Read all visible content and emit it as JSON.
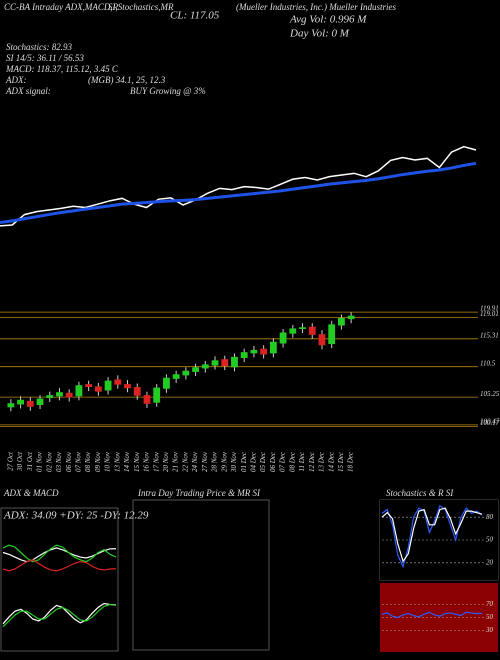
{
  "header": {
    "h1": "CC-BA Intraday ADX,MACD,R",
    "h2": "SI,Stochastics,MR",
    "h3": "CL: 117.05",
    "h4": "(Mueller Industries, Inc.) Mueller Industries",
    "avg_vol": "Avg Vol: 0.996  M",
    "day_vol": "Day Vol: 0  M",
    "stoch": "Stochastics: 82.93",
    "si": "SI 14/5: 36.11 / 56.53",
    "macd": "MACD: 118.37, 115.12, 3.45 C",
    "adx": "ADX:",
    "adx_vals": "(MGB) 34.1, 25, 12.3",
    "adx_signal": "ADX  signal:",
    "signal": "BUY Growing @ 3%"
  },
  "chart_data": [
    {
      "type": "line",
      "ylim": [
        95,
        125
      ],
      "series": [
        {
          "color": "#ffffff",
          "values": [
            100.8,
            101.0,
            103.5,
            104.2,
            104.6,
            105.0,
            105.5,
            105.2,
            106.0,
            106.8,
            107.4,
            106.0,
            105.2,
            107.2,
            107.5,
            105.8,
            107.0,
            108.6,
            109.8,
            109.5,
            110.2,
            110.0,
            109.6,
            110.8,
            112.0,
            112.4,
            111.8,
            112.6,
            113.0,
            113.4,
            112.6,
            114.0,
            116.5,
            117.2,
            116.6,
            117.0,
            114.8,
            118.5,
            119.8,
            119.0
          ]
        },
        {
          "color": "#1f52e6",
          "values": [
            101.6,
            102.0,
            102.5,
            103.0,
            103.5,
            104.0,
            104.4,
            104.8,
            105.2,
            105.6,
            106.0,
            106.2,
            106.4,
            106.6,
            106.8,
            106.9,
            107.1,
            107.4,
            107.7,
            108.0,
            108.3,
            108.6,
            108.9,
            109.2,
            109.6,
            110.0,
            110.4,
            110.8,
            111.1,
            111.4,
            111.7,
            112.1,
            112.6,
            113.1,
            113.5,
            113.9,
            114.2,
            114.7,
            115.3,
            115.8
          ]
        }
      ]
    },
    {
      "type": "candlestick",
      "ylim": [
        97,
        122
      ],
      "yticks": [
        119.91,
        119.01,
        115.31,
        110.5,
        105.25,
        100.47,
        100.17
      ],
      "up_color": "#22cc22",
      "down_color": "#dd2222",
      "categories": [
        "27 Oct",
        "30 Oct",
        "31 Oct",
        "01 Nov",
        "02 Nov",
        "03 Nov",
        "06 Nov",
        "07 Nov",
        "08 Nov",
        "09 Nov",
        "10 Nov",
        "13 Nov",
        "14 Nov",
        "15 Nov",
        "16 Nov",
        "17 Nov",
        "20 Nov",
        "21 Nov",
        "22 Nov",
        "24 Nov",
        "27 Nov",
        "28 Nov",
        "29 Nov",
        "30 Nov",
        "01 Dec",
        "04 Dec",
        "05 Dec",
        "06 Dec",
        "07 Dec",
        "08 Dec",
        "11 Dec",
        "12 Dec",
        "13 Dec",
        "14 Dec",
        "15 Dec",
        "18 Dec"
      ],
      "open": [
        103.5,
        104.0,
        104.6,
        103.9,
        105.1,
        105.4,
        106.0,
        105.4,
        107.5,
        107.1,
        106.4,
        108.3,
        107.5,
        107.0,
        105.6,
        104.3,
        106.7,
        108.4,
        109.0,
        109.6,
        110.2,
        110.7,
        111.8,
        110.4,
        112.0,
        112.8,
        113.6,
        112.8,
        114.5,
        116.2,
        117.0,
        117.4,
        116.1,
        114.4,
        117.6,
        118.7
      ],
      "high": [
        104.9,
        105.4,
        105.2,
        105.6,
        106.2,
        106.8,
        106.6,
        107.9,
        108.1,
        107.7,
        108.7,
        109.0,
        108.2,
        107.6,
        106.2,
        107.5,
        109.2,
        109.8,
        110.4,
        111.0,
        111.5,
        112.3,
        112.4,
        112.8,
        113.6,
        114.1,
        114.2,
        115.4,
        117.0,
        117.7,
        118.0,
        118.0,
        116.8,
        118.4,
        119.5,
        119.9
      ],
      "low": [
        102.8,
        103.3,
        102.9,
        103.2,
        104.4,
        104.7,
        104.5,
        104.7,
        106.3,
        105.5,
        105.7,
        106.7,
        106.1,
        104.8,
        103.4,
        103.6,
        106.0,
        107.7,
        108.3,
        108.9,
        109.5,
        110.0,
        109.9,
        109.7,
        111.3,
        112.1,
        111.9,
        112.1,
        113.8,
        115.5,
        116.3,
        115.3,
        113.5,
        113.7,
        116.9,
        118.0
      ],
      "close": [
        104.2,
        104.8,
        103.6,
        105.0,
        105.6,
        106.1,
        105.2,
        107.3,
        107.0,
        106.2,
        108.1,
        107.4,
        106.8,
        105.5,
        104.1,
        106.9,
        108.6,
        109.2,
        109.8,
        110.4,
        110.9,
        111.6,
        110.6,
        112.2,
        113.0,
        113.4,
        112.6,
        114.8,
        116.4,
        117.1,
        117.3,
        116.0,
        114.2,
        117.8,
        118.9,
        119.3
      ]
    },
    {
      "type": "line",
      "title": "ADX  & MACD",
      "label": "ADX: 34.09  +DY: 25  -DY: 12.29",
      "ylim": [
        0,
        60
      ],
      "series": [
        {
          "color": "#ffffff",
          "values": [
            30,
            28,
            25,
            22,
            20,
            22,
            26,
            30,
            33,
            35,
            33,
            30,
            27,
            25,
            24,
            26,
            29,
            32,
            34,
            34.09
          ]
        },
        {
          "color": "#22cc22",
          "values": [
            35,
            38,
            36,
            30,
            24,
            20,
            22,
            28,
            34,
            38,
            36,
            30,
            25,
            22,
            20,
            24,
            30,
            33,
            28,
            25
          ]
        },
        {
          "color": "#dd2222",
          "values": [
            12,
            10,
            12,
            16,
            20,
            22,
            18,
            14,
            11,
            10,
            12,
            15,
            18,
            20,
            19,
            15,
            12,
            11,
            12,
            12.29
          ]
        }
      ]
    },
    {
      "type": "line",
      "ylim": [
        -1,
        5
      ],
      "series": [
        {
          "color": "#ffffff",
          "values": [
            1.5,
            2.2,
            2.8,
            3.0,
            2.6,
            2.0,
            1.8,
            2.2,
            2.9,
            3.4,
            3.2,
            2.6,
            2.0,
            1.6,
            1.9,
            2.6,
            3.2,
            3.6,
            3.5,
            3.45
          ]
        },
        {
          "color": "#22cc22",
          "values": [
            1.2,
            1.8,
            2.4,
            2.8,
            2.8,
            2.4,
            2.0,
            2.0,
            2.5,
            3.0,
            3.2,
            2.9,
            2.4,
            1.9,
            1.8,
            2.2,
            2.8,
            3.3,
            3.5,
            3.4
          ]
        }
      ]
    },
    {
      "type": "empty",
      "title": "Intra Day Trading Price  & MR                SI"
    },
    {
      "type": "line",
      "title": "Stochastics  & R                SI",
      "ylim": [
        0,
        100
      ],
      "yticks": [
        20,
        50,
        80
      ],
      "background": "#000000",
      "series": [
        {
          "color": "#2a5cff",
          "values": [
            85,
            90,
            70,
            30,
            15,
            40,
            80,
            92,
            88,
            60,
            75,
            95,
            90,
            70,
            50,
            80,
            92,
            85,
            88,
            82.93
          ]
        },
        {
          "color": "#ffffff",
          "values": [
            80,
            86,
            78,
            45,
            22,
            32,
            65,
            88,
            90,
            70,
            70,
            90,
            92,
            78,
            58,
            72,
            88,
            88,
            86,
            84
          ]
        }
      ]
    },
    {
      "type": "line",
      "ylim": [
        0,
        100
      ],
      "yticks": [
        30,
        50,
        70
      ],
      "background": "#8b0000",
      "series": [
        {
          "color": "#2a5cff",
          "values": [
            55,
            57,
            52,
            50,
            54,
            56,
            53,
            51,
            55,
            58,
            54,
            52,
            56,
            57,
            55,
            53,
            58,
            57,
            56,
            56.53
          ]
        }
      ]
    }
  ]
}
